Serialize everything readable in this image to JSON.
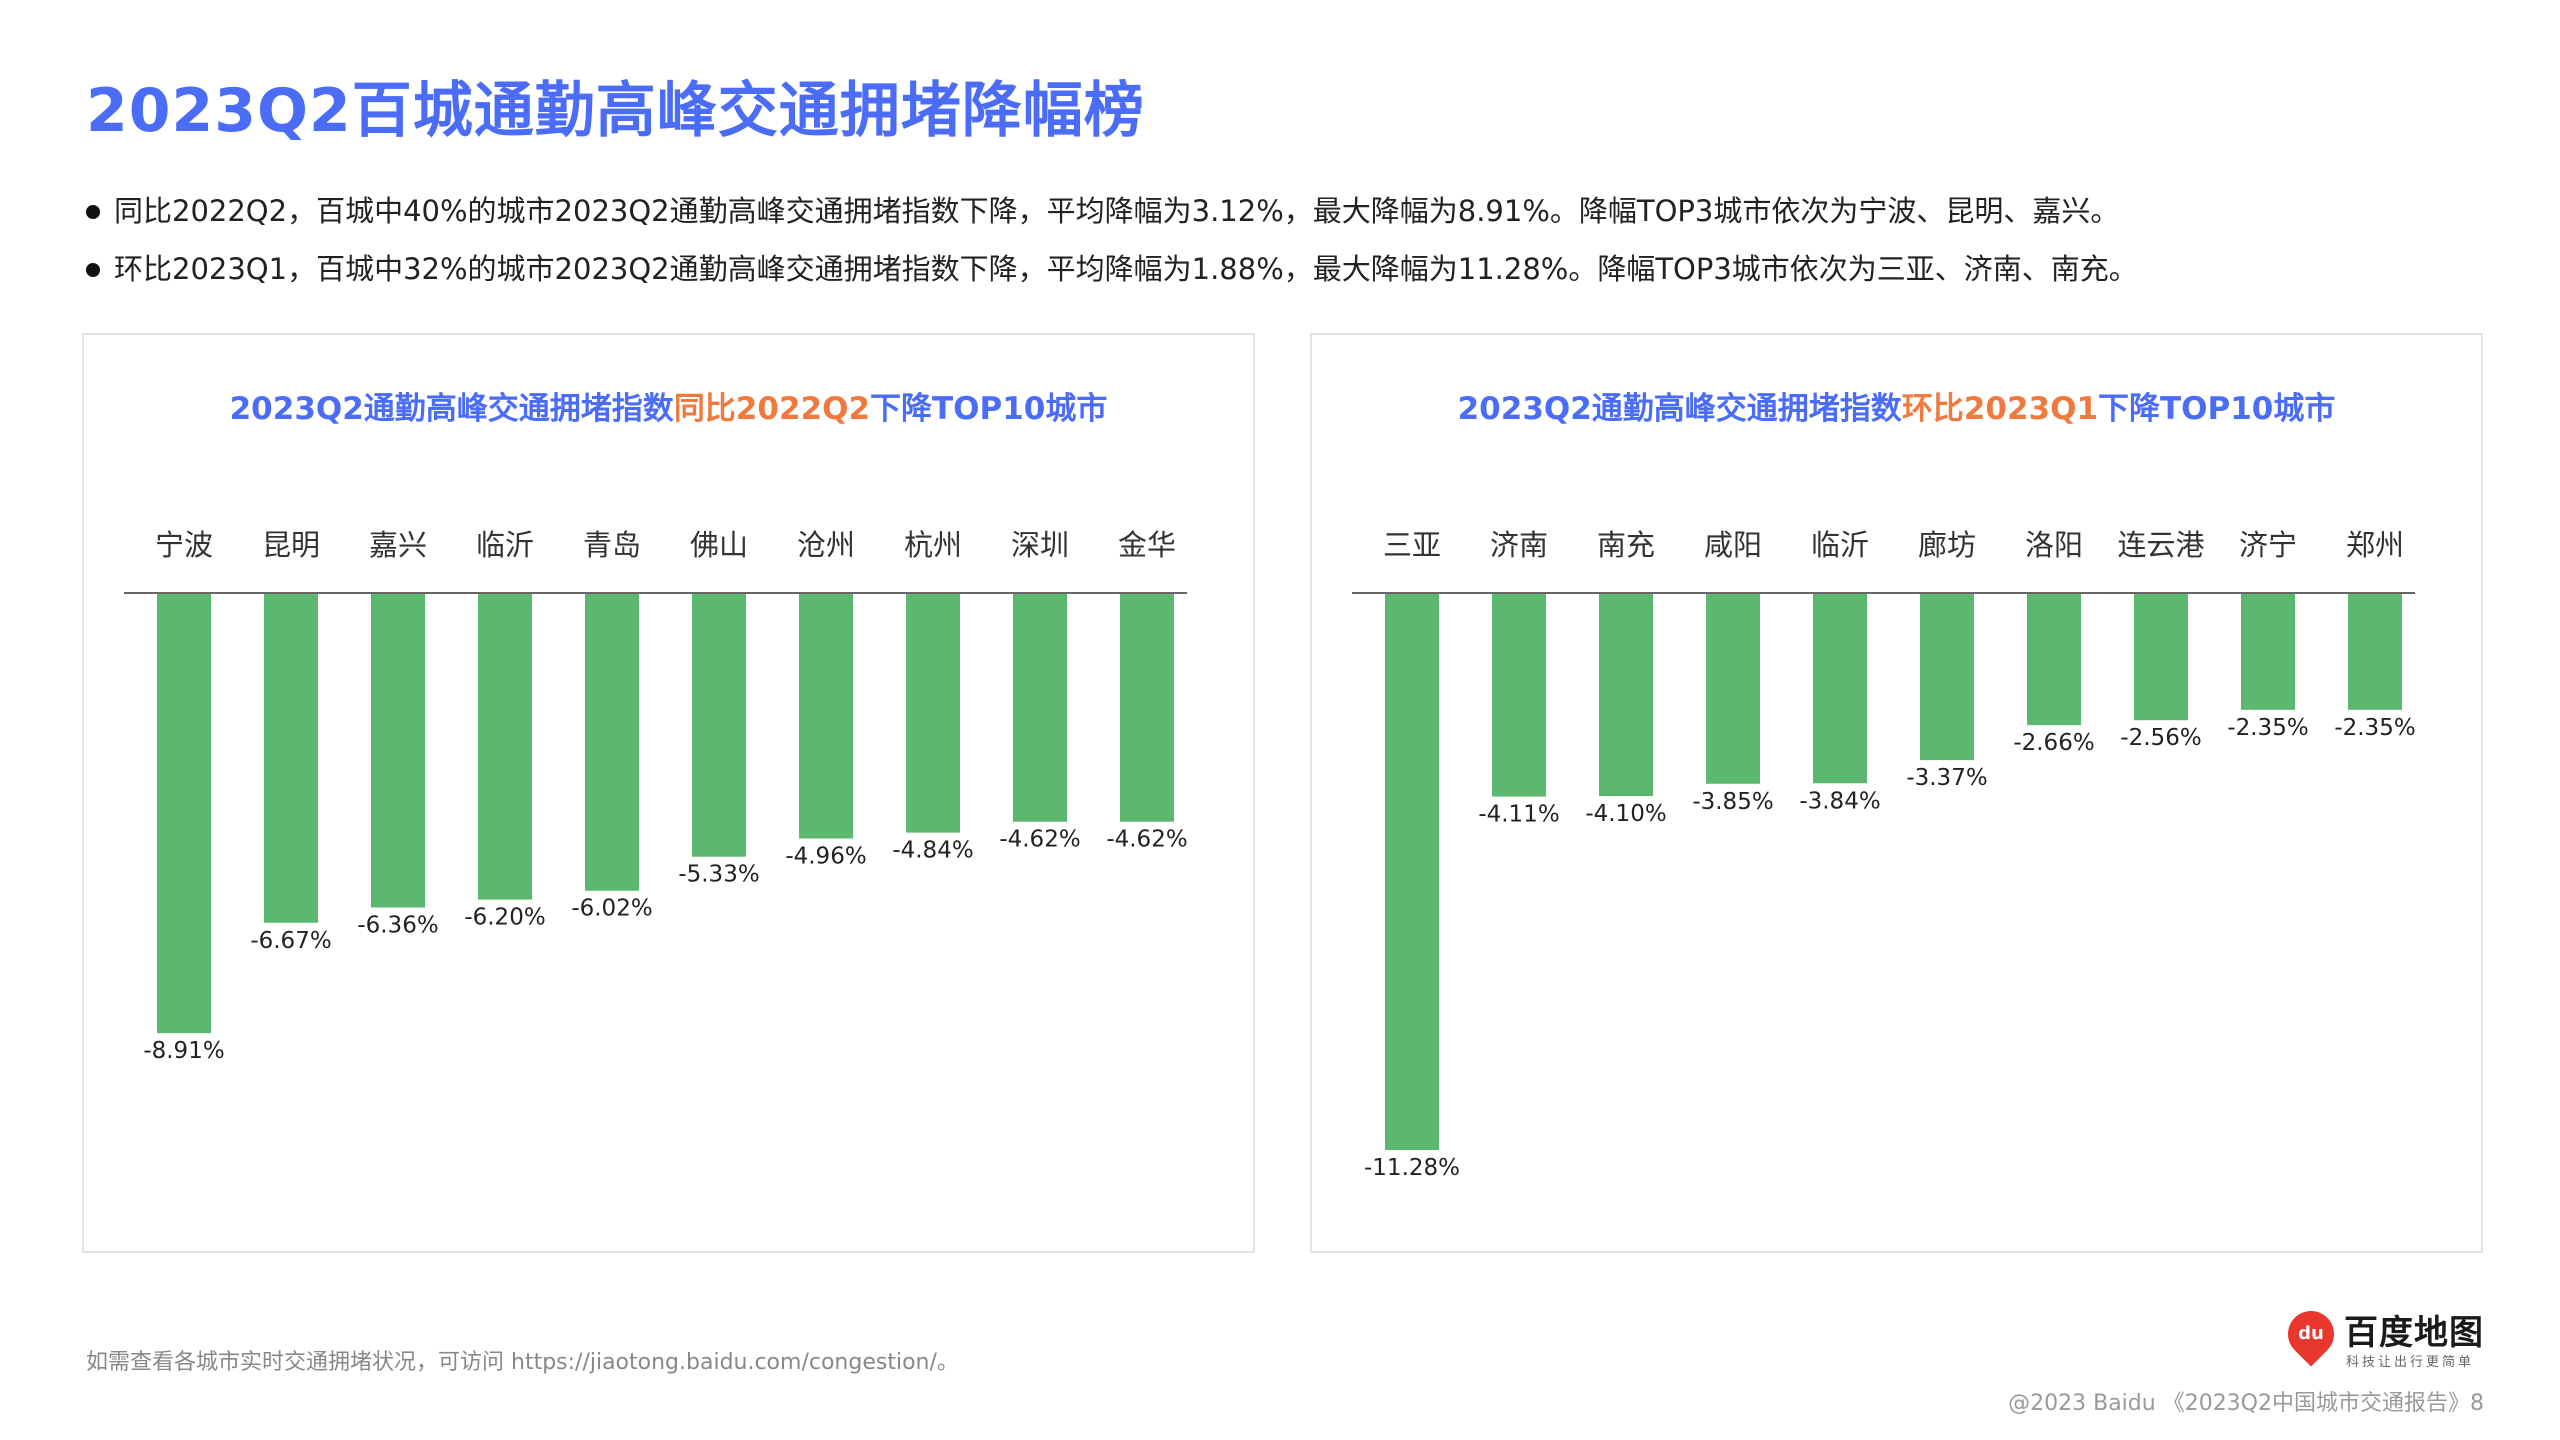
{
  "page": {
    "title": "2023Q2百城通勤高峰交通拥堵降幅榜",
    "bullets": [
      "同比2022Q2，百城中40%的城市2023Q2通勤高峰交通拥堵指数下降，平均降幅为3.12%，最大降幅为8.91%。降幅TOP3城市依次为宁波、昆明、嘉兴。",
      "环比2023Q1，百城中32%的城市2023Q2通勤高峰交通拥堵指数下降，平均降幅为1.88%，最大降幅为11.28%。降幅TOP3城市依次为三亚、济南、南充。"
    ],
    "footnote": "如需查看各城市实时交通拥堵状况，可访问 https://jiaotong.baidu.com/congestion/。",
    "copyright": "@2023 Baidu 《2023Q2中国城市交通报告》8",
    "logo": {
      "name": "百度地图",
      "tagline": "科技让出行更简单",
      "icon_text": "du"
    }
  },
  "colors": {
    "title": "#4a6cf7",
    "highlight": "#f07a3e",
    "bar": "#5cb86e",
    "axis": "#666666"
  },
  "chart_data": [
    {
      "type": "bar",
      "title_parts": [
        "2023Q2通勤高峰交通拥堵指数",
        "同比2022Q2",
        "下降TOP10城市"
      ],
      "categories": [
        "宁波",
        "昆明",
        "嘉兴",
        "临沂",
        "青岛",
        "佛山",
        "沧州",
        "杭州",
        "深圳",
        "金华"
      ],
      "values": [
        -8.91,
        -6.67,
        -6.36,
        -6.2,
        -6.02,
        -5.33,
        -4.96,
        -4.84,
        -4.62,
        -4.62
      ],
      "labels": [
        "-8.91%",
        "-6.67%",
        "-6.36%",
        "-6.20%",
        "-6.02%",
        "-5.33%",
        "-4.96%",
        "-4.84%",
        "-4.62%",
        "-4.62%"
      ],
      "unit": "%",
      "ylim": [
        -11.28,
        0
      ],
      "grid": false,
      "legend": "none"
    },
    {
      "type": "bar",
      "title_parts": [
        "2023Q2通勤高峰交通拥堵指数",
        "环比2023Q1",
        "下降TOP10城市"
      ],
      "categories": [
        "三亚",
        "济南",
        "南充",
        "咸阳",
        "临沂",
        "廊坊",
        "洛阳",
        "连云港",
        "济宁",
        "郑州"
      ],
      "values": [
        -11.28,
        -4.11,
        -4.1,
        -3.85,
        -3.84,
        -3.37,
        -2.66,
        -2.56,
        -2.35,
        -2.35
      ],
      "labels": [
        "-11.28%",
        "-4.11%",
        "-4.10%",
        "-3.85%",
        "-3.84%",
        "-3.37%",
        "-2.66%",
        "-2.56%",
        "-2.35%",
        "-2.35%"
      ],
      "unit": "%",
      "ylim": [
        -11.28,
        0
      ],
      "grid": false,
      "legend": "none"
    }
  ]
}
